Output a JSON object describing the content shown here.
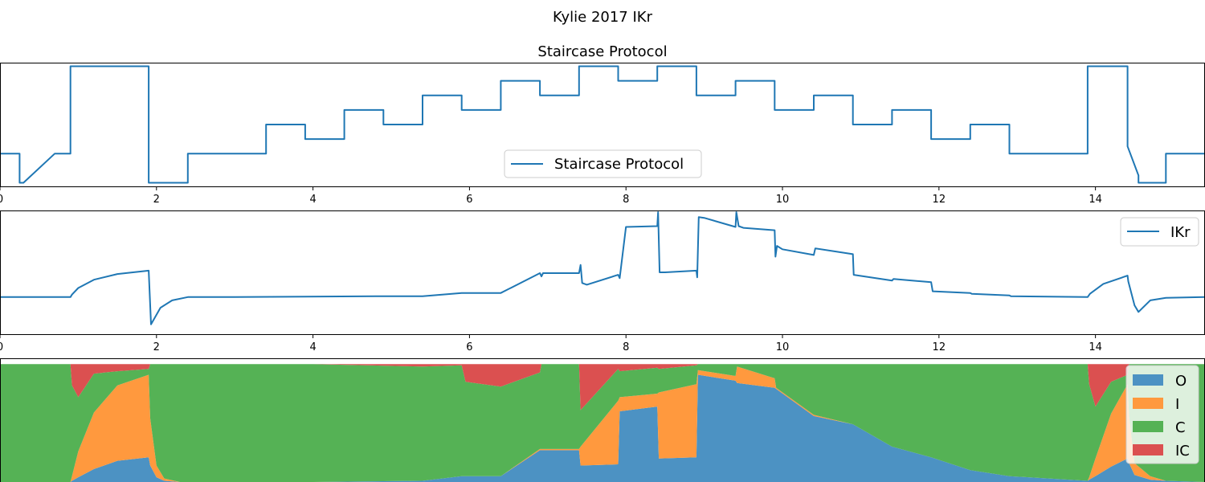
{
  "figure": {
    "suptitle": "Kylie 2017 IKr"
  },
  "chart_data": [
    {
      "type": "line",
      "title": "Staircase Protocol",
      "xlim": [
        0,
        15.4
      ],
      "ylim": [
        -125,
        45
      ],
      "xticks": [
        0,
        2,
        4,
        6,
        8,
        10,
        12,
        14
      ],
      "yticks_visible": false,
      "legend": {
        "placement": "lower center",
        "entries": [
          "Staircase Protocol"
        ]
      },
      "series": [
        {
          "name": "Staircase Protocol",
          "color": "#1f77b4",
          "x": [
            0,
            0.25,
            0.25,
            0.3,
            0.7,
            0.9,
            0.9,
            1.9,
            1.9,
            2.4,
            2.4,
            3.4,
            3.4,
            3.9,
            3.9,
            4.4,
            4.4,
            4.9,
            4.9,
            5.4,
            5.4,
            5.9,
            5.9,
            6.4,
            6.4,
            6.9,
            6.9,
            7.4,
            7.4,
            7.9,
            7.9,
            8.4,
            8.4,
            8.9,
            8.9,
            9.4,
            9.4,
            9.9,
            9.9,
            10.4,
            10.4,
            10.9,
            10.9,
            11.4,
            11.4,
            11.9,
            11.9,
            12.4,
            12.4,
            12.9,
            12.9,
            13.9,
            13.9,
            14.41,
            14.41,
            14.55,
            14.55,
            14.9,
            14.9,
            15.4
          ],
          "y": [
            -80,
            -80,
            -120,
            -120,
            -80,
            -80,
            40,
            40,
            -120,
            -120,
            -80,
            -80,
            -40,
            -40,
            -60,
            -60,
            -20,
            -20,
            -40,
            -40,
            0,
            0,
            -20,
            -20,
            20,
            20,
            0,
            0,
            40,
            40,
            20,
            20,
            40,
            40,
            0,
            0,
            20,
            20,
            -20,
            -20,
            0,
            0,
            -40,
            -40,
            -20,
            -20,
            -60,
            -60,
            -40,
            -40,
            -80,
            -80,
            40,
            40,
            -70,
            -110,
            -120,
            -120,
            -80,
            -80
          ]
        }
      ]
    },
    {
      "type": "line",
      "title": "",
      "xlim": [
        0,
        15.4
      ],
      "ylim": [
        -0.45,
        1.05
      ],
      "xticks": [
        0,
        2,
        4,
        6,
        8,
        10,
        12,
        14
      ],
      "yticks_visible": false,
      "legend": {
        "placement": "upper right",
        "entries": [
          "IKr"
        ]
      },
      "series": [
        {
          "name": "IKr",
          "color": "#1f77b4",
          "x": [
            0,
            0.9,
            0.92,
            1.0,
            1.2,
            1.5,
            1.9,
            1.9,
            1.93,
            2.05,
            2.2,
            2.4,
            3.0,
            4.8,
            5.4,
            5.9,
            5.95,
            6.4,
            6.9,
            6.92,
            6.94,
            7.4,
            7.42,
            7.44,
            7.5,
            7.9,
            7.92,
            8.0,
            8.4,
            8.41,
            8.43,
            8.5,
            8.9,
            8.91,
            8.93,
            9.0,
            9.4,
            9.41,
            9.44,
            9.5,
            9.9,
            9.91,
            9.93,
            10.0,
            10.4,
            10.42,
            10.9,
            10.91,
            11.4,
            11.42,
            11.9,
            11.92,
            12.4,
            12.42,
            12.9,
            12.92,
            13.9,
            13.93,
            14.1,
            14.41,
            14.42,
            14.5,
            14.55,
            14.7,
            14.9,
            15.4
          ],
          "y": [
            0,
            0,
            0.03,
            0.11,
            0.21,
            0.28,
            0.32,
            0.32,
            -0.33,
            -0.13,
            -0.04,
            0,
            0,
            0.01,
            0.01,
            0.05,
            0.05,
            0.05,
            0.29,
            0.25,
            0.29,
            0.29,
            0.39,
            0.17,
            0.15,
            0.27,
            0.23,
            0.85,
            0.86,
            1.03,
            0.3,
            0.3,
            0.32,
            0.24,
            0.97,
            0.96,
            0.85,
            1.03,
            0.86,
            0.84,
            0.81,
            0.49,
            0.62,
            0.58,
            0.51,
            0.59,
            0.52,
            0.27,
            0.2,
            0.22,
            0.18,
            0.07,
            0.05,
            0.04,
            0.02,
            0.01,
            0,
            0.04,
            0.16,
            0.26,
            0.19,
            -0.1,
            -0.18,
            -0.04,
            -0.01,
            0
          ]
        }
      ]
    },
    {
      "type": "area",
      "stacked": true,
      "title": "",
      "xlim": [
        0,
        15.4
      ],
      "ylim": [
        0,
        1.05
      ],
      "yticks_visible": false,
      "legend": {
        "placement": "upper right",
        "entries": [
          "O",
          "I",
          "C",
          "IC"
        ]
      },
      "x": [
        0,
        0.9,
        0.92,
        1.0,
        1.2,
        1.5,
        1.9,
        1.92,
        2.0,
        2.1,
        2.3,
        2.4,
        4.0,
        5.4,
        5.9,
        5.95,
        6.4,
        6.9,
        6.92,
        7.4,
        7.42,
        7.9,
        7.92,
        8.4,
        8.42,
        8.9,
        8.92,
        9.4,
        9.42,
        9.9,
        9.92,
        10.4,
        10.9,
        11.4,
        11.9,
        12.4,
        12.9,
        13.9,
        13.92,
        14.0,
        14.2,
        14.41,
        14.43,
        14.5,
        14.7,
        14.9,
        15.4
      ],
      "series": [
        {
          "name": "O",
          "color": "#4c92c3",
          "values": [
            0,
            0,
            0.01,
            0.04,
            0.11,
            0.18,
            0.21,
            0.14,
            0.04,
            0.01,
            0,
            0,
            0,
            0.01,
            0.05,
            0.05,
            0.05,
            0.27,
            0.27,
            0.27,
            0.14,
            0.15,
            0.6,
            0.64,
            0.2,
            0.21,
            0.91,
            0.86,
            0.84,
            0.8,
            0.79,
            0.56,
            0.49,
            0.3,
            0.21,
            0.1,
            0.05,
            0.01,
            0.02,
            0.05,
            0.13,
            0.2,
            0.16,
            0.06,
            0.02,
            0.01,
            0
          ]
        },
        {
          "name": "I",
          "color": "#ff993e",
          "values": [
            0,
            0,
            0.04,
            0.22,
            0.48,
            0.64,
            0.7,
            0.4,
            0.1,
            0.02,
            0,
            0,
            0,
            0,
            0,
            0,
            0,
            0.01,
            0.01,
            0.01,
            0.16,
            0.54,
            0.12,
            0.11,
            0.56,
            0.62,
            0.04,
            0.04,
            0.14,
            0.08,
            0.01,
            0.01,
            0,
            0,
            0,
            0,
            0,
            0,
            0.02,
            0.15,
            0.45,
            0.63,
            0.4,
            0.1,
            0.03,
            0,
            0
          ]
        },
        {
          "name": "C",
          "color": "#55b255",
          "values": [
            1.0,
            1.0,
            0.77,
            0.46,
            0.33,
            0.12,
            0.05,
            0.46,
            0.86,
            0.97,
            1.0,
            1.0,
            1.0,
            0.97,
            0.94,
            0.8,
            0.76,
            0.65,
            0.72,
            0.72,
            0.31,
            0.27,
            0.22,
            0.22,
            0.2,
            0.16,
            0.05,
            0.1,
            0.02,
            0.12,
            0.2,
            0.43,
            0.51,
            0.7,
            0.79,
            0.9,
            0.95,
            0.99,
            0.79,
            0.44,
            0.27,
            0.08,
            0.44,
            0.84,
            0.95,
            0.99,
            1.0
          ]
        },
        {
          "name": "IC",
          "color": "#db5050",
          "values": [
            0,
            0,
            0.18,
            0.28,
            0.08,
            0.06,
            0.04,
            0,
            0,
            0,
            0,
            0,
            0,
            0.02,
            0.01,
            0.15,
            0.19,
            0.07,
            0,
            0,
            0.39,
            0.04,
            0.06,
            0.03,
            0.04,
            0.01,
            0,
            0,
            0,
            0,
            0,
            0,
            0,
            0,
            0,
            0,
            0,
            0,
            0.17,
            0.36,
            0.15,
            0.09,
            0,
            0,
            0,
            0,
            0
          ]
        }
      ]
    }
  ]
}
